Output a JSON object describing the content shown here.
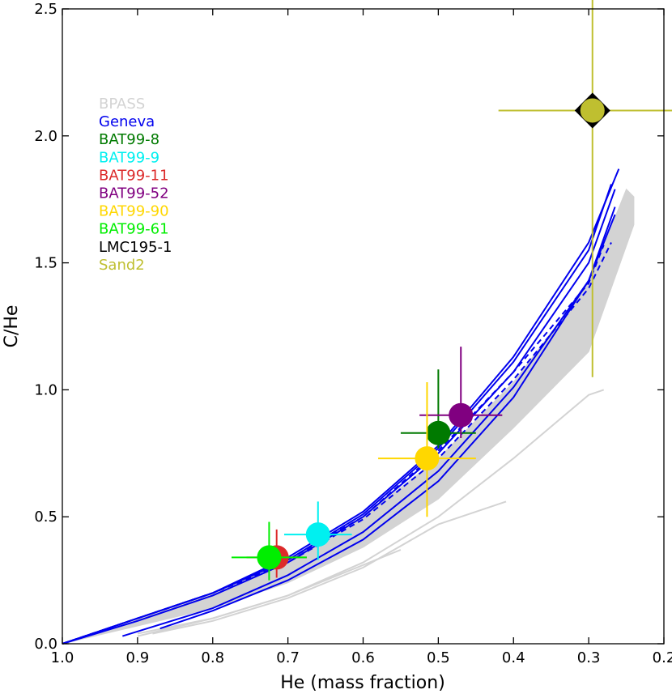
{
  "chart_data": {
    "type": "scatter",
    "title": "",
    "xlabel": "He (mass fraction)",
    "ylabel": "C/He",
    "xlim": [
      1.0,
      0.2
    ],
    "ylim": [
      0.0,
      2.5
    ],
    "x_reversed": true,
    "grid": false,
    "legend_placement": "top-left",
    "xticks": [
      "1.0",
      "0.9",
      "0.8",
      "0.7",
      "0.6",
      "0.5",
      "0.4",
      "0.3",
      "0.2"
    ],
    "yticks": [
      "0.0",
      "0.5",
      "1.0",
      "1.5",
      "2.0",
      "2.5"
    ],
    "legend": [
      {
        "label": "BPASS",
        "color": "#d3d3d3"
      },
      {
        "label": "Geneva",
        "color": "#0000ee"
      },
      {
        "label": "BAT99-8",
        "color": "#007a00"
      },
      {
        "label": "BAT99-9",
        "color": "#00f0f0"
      },
      {
        "label": "BAT99-11",
        "color": "#dc2a2a"
      },
      {
        "label": "BAT99-52",
        "color": "#800080"
      },
      {
        "label": "BAT99-90",
        "color": "#ffd700"
      },
      {
        "label": "BAT99-61",
        "color": "#00ee00"
      },
      {
        "label": "LMC195-1",
        "color": "#000000"
      },
      {
        "label": "Sand2",
        "color": "#bfbf30"
      }
    ],
    "points": [
      {
        "name": "BAT99-8",
        "x": 0.5,
        "y": 0.83,
        "xerr": 0.05,
        "yerr_low": 0.06,
        "yerr_high": 0.25,
        "color": "#007a00",
        "marker": "circle"
      },
      {
        "name": "BAT99-9",
        "x": 0.66,
        "y": 0.43,
        "xerr": 0.045,
        "yerr_low": 0.1,
        "yerr_high": 0.13,
        "color": "#00f0f0",
        "marker": "circle"
      },
      {
        "name": "BAT99-11",
        "x": 0.715,
        "y": 0.34,
        "xerr": 0.04,
        "yerr_low": 0.08,
        "yerr_high": 0.11,
        "color": "#dc2a2a",
        "marker": "circle"
      },
      {
        "name": "BAT99-52",
        "x": 0.47,
        "y": 0.9,
        "xerr": 0.055,
        "yerr_low": 0.09,
        "yerr_high": 0.27,
        "color": "#800080",
        "marker": "circle"
      },
      {
        "name": "BAT99-90",
        "x": 0.515,
        "y": 0.73,
        "xerr": 0.065,
        "yerr_low": 0.23,
        "yerr_high": 0.3,
        "color": "#ffd700",
        "marker": "circle"
      },
      {
        "name": "BAT99-61",
        "x": 0.725,
        "y": 0.34,
        "xerr": 0.05,
        "yerr_low": 0.09,
        "yerr_high": 0.14,
        "color": "#00ee00",
        "marker": "circle"
      },
      {
        "name": "Sand2",
        "x": 0.295,
        "y": 2.1,
        "xerr": 0.125,
        "yerr_low": 1.05,
        "yerr_high": 0.45,
        "color": "#bfbf30",
        "marker": "circle-on-diamond"
      }
    ],
    "geneva_tracks": [
      {
        "style": "solid",
        "points": [
          [
            1.0,
            0.0
          ],
          [
            0.9,
            0.1
          ],
          [
            0.8,
            0.2
          ],
          [
            0.7,
            0.34
          ],
          [
            0.6,
            0.52
          ],
          [
            0.5,
            0.78
          ],
          [
            0.4,
            1.13
          ],
          [
            0.3,
            1.58
          ],
          [
            0.26,
            1.87
          ]
        ]
      },
      {
        "style": "solid",
        "points": [
          [
            1.0,
            0.0
          ],
          [
            0.9,
            0.1
          ],
          [
            0.8,
            0.2
          ],
          [
            0.7,
            0.33
          ],
          [
            0.6,
            0.51
          ],
          [
            0.5,
            0.77
          ],
          [
            0.4,
            1.11
          ],
          [
            0.3,
            1.55
          ],
          [
            0.27,
            1.81
          ]
        ]
      },
      {
        "style": "solid",
        "points": [
          [
            1.0,
            0.0
          ],
          [
            0.9,
            0.09
          ],
          [
            0.8,
            0.19
          ],
          [
            0.7,
            0.32
          ],
          [
            0.6,
            0.5
          ],
          [
            0.5,
            0.75
          ],
          [
            0.4,
            1.07
          ],
          [
            0.3,
            1.5
          ],
          [
            0.265,
            1.79
          ]
        ]
      },
      {
        "style": "dashed",
        "points": [
          [
            1.0,
            0.0
          ],
          [
            0.9,
            0.1
          ],
          [
            0.8,
            0.2
          ],
          [
            0.7,
            0.33
          ],
          [
            0.6,
            0.5
          ],
          [
            0.5,
            0.76
          ],
          [
            0.4,
            1.07
          ],
          [
            0.3,
            1.42
          ],
          [
            0.28,
            1.57
          ]
        ]
      },
      {
        "style": "dashed",
        "points": [
          [
            1.0,
            0.0
          ],
          [
            0.9,
            0.1
          ],
          [
            0.8,
            0.2
          ],
          [
            0.7,
            0.32
          ],
          [
            0.6,
            0.49
          ],
          [
            0.5,
            0.73
          ],
          [
            0.4,
            1.04
          ],
          [
            0.3,
            1.4
          ],
          [
            0.27,
            1.58
          ]
        ]
      },
      {
        "style": "solid",
        "points": [
          [
            0.92,
            0.03
          ],
          [
            0.8,
            0.14
          ],
          [
            0.7,
            0.27
          ],
          [
            0.6,
            0.44
          ],
          [
            0.5,
            0.68
          ],
          [
            0.4,
            1.01
          ],
          [
            0.3,
            1.43
          ],
          [
            0.265,
            1.72
          ]
        ]
      },
      {
        "style": "solid",
        "points": [
          [
            0.87,
            0.06
          ],
          [
            0.8,
            0.13
          ],
          [
            0.7,
            0.25
          ],
          [
            0.6,
            0.41
          ],
          [
            0.5,
            0.64
          ],
          [
            0.4,
            0.97
          ],
          [
            0.3,
            1.43
          ],
          [
            0.265,
            1.69
          ]
        ]
      }
    ],
    "bpass_band": {
      "upper": [
        [
          1.0,
          0.0
        ],
        [
          0.9,
          0.1
        ],
        [
          0.8,
          0.2
        ],
        [
          0.7,
          0.33
        ],
        [
          0.6,
          0.5
        ],
        [
          0.5,
          0.73
        ],
        [
          0.4,
          1.03
        ],
        [
          0.3,
          1.42
        ],
        [
          0.25,
          1.79
        ],
        [
          0.24,
          1.76
        ]
      ],
      "lower": [
        [
          0.24,
          1.65
        ],
        [
          0.3,
          1.15
        ],
        [
          0.4,
          0.85
        ],
        [
          0.5,
          0.57
        ],
        [
          0.6,
          0.38
        ],
        [
          0.7,
          0.24
        ],
        [
          0.8,
          0.14
        ],
        [
          0.9,
          0.07
        ],
        [
          1.0,
          0.0
        ]
      ]
    },
    "bpass_tracks": [
      {
        "points": [
          [
            0.9,
            0.03
          ],
          [
            0.8,
            0.1
          ],
          [
            0.7,
            0.19
          ],
          [
            0.6,
            0.32
          ],
          [
            0.5,
            0.5
          ],
          [
            0.4,
            0.73
          ],
          [
            0.3,
            0.98
          ],
          [
            0.28,
            1.0
          ]
        ]
      },
      {
        "points": [
          [
            0.88,
            0.04
          ],
          [
            0.8,
            0.09
          ],
          [
            0.7,
            0.18
          ],
          [
            0.6,
            0.3
          ],
          [
            0.5,
            0.47
          ],
          [
            0.41,
            0.56
          ]
        ]
      },
      {
        "points": [
          [
            0.9,
            0.04
          ],
          [
            0.8,
            0.1
          ],
          [
            0.7,
            0.19
          ],
          [
            0.6,
            0.31
          ],
          [
            0.55,
            0.37
          ]
        ]
      }
    ]
  }
}
